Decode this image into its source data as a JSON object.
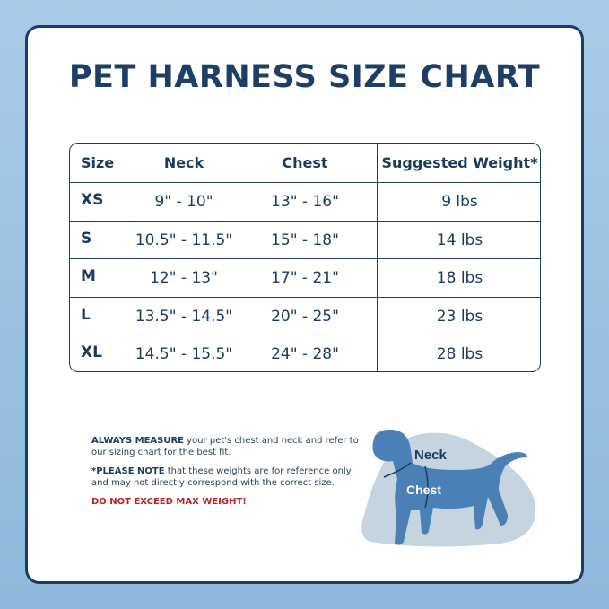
{
  "title": "PET HARNESS SIZE CHART",
  "table": {
    "headers": [
      "Size",
      "Neck",
      "Chest",
      "Suggested Weight*"
    ],
    "rows": [
      [
        "XS",
        "9\" - 10\"",
        "13\" - 16\"",
        "9 lbs"
      ],
      [
        "S",
        "10.5\" - 11.5\"",
        "15\" - 18\"",
        "14 lbs"
      ],
      [
        "M",
        "12\" - 13\"",
        "17\" - 21\"",
        "18 lbs"
      ],
      [
        "L",
        "13.5\" - 14.5\"",
        "20\" - 25\"",
        "23 lbs"
      ],
      [
        "XL",
        "14.5\" - 15.5\"",
        "24\" - 28\"",
        "28 lbs"
      ]
    ]
  },
  "notes": {
    "measure_bold": "ALWAYS MEASURE",
    "measure_text": " your pet's chest and neck and refer to our sizing chart for the best fit.",
    "note_bold": "*PLEASE NOTE",
    "note_text": " that these weights are for reference only and may not directly correspond with the correct size.",
    "warning": "DO NOT EXCEED MAX WEIGHT!"
  },
  "diagram": {
    "neck_label": "Neck",
    "chest_label": "Chest"
  },
  "colors": {
    "navy": "#1d3b60",
    "dog": "#4a80b5",
    "warning": "#b3262b"
  }
}
